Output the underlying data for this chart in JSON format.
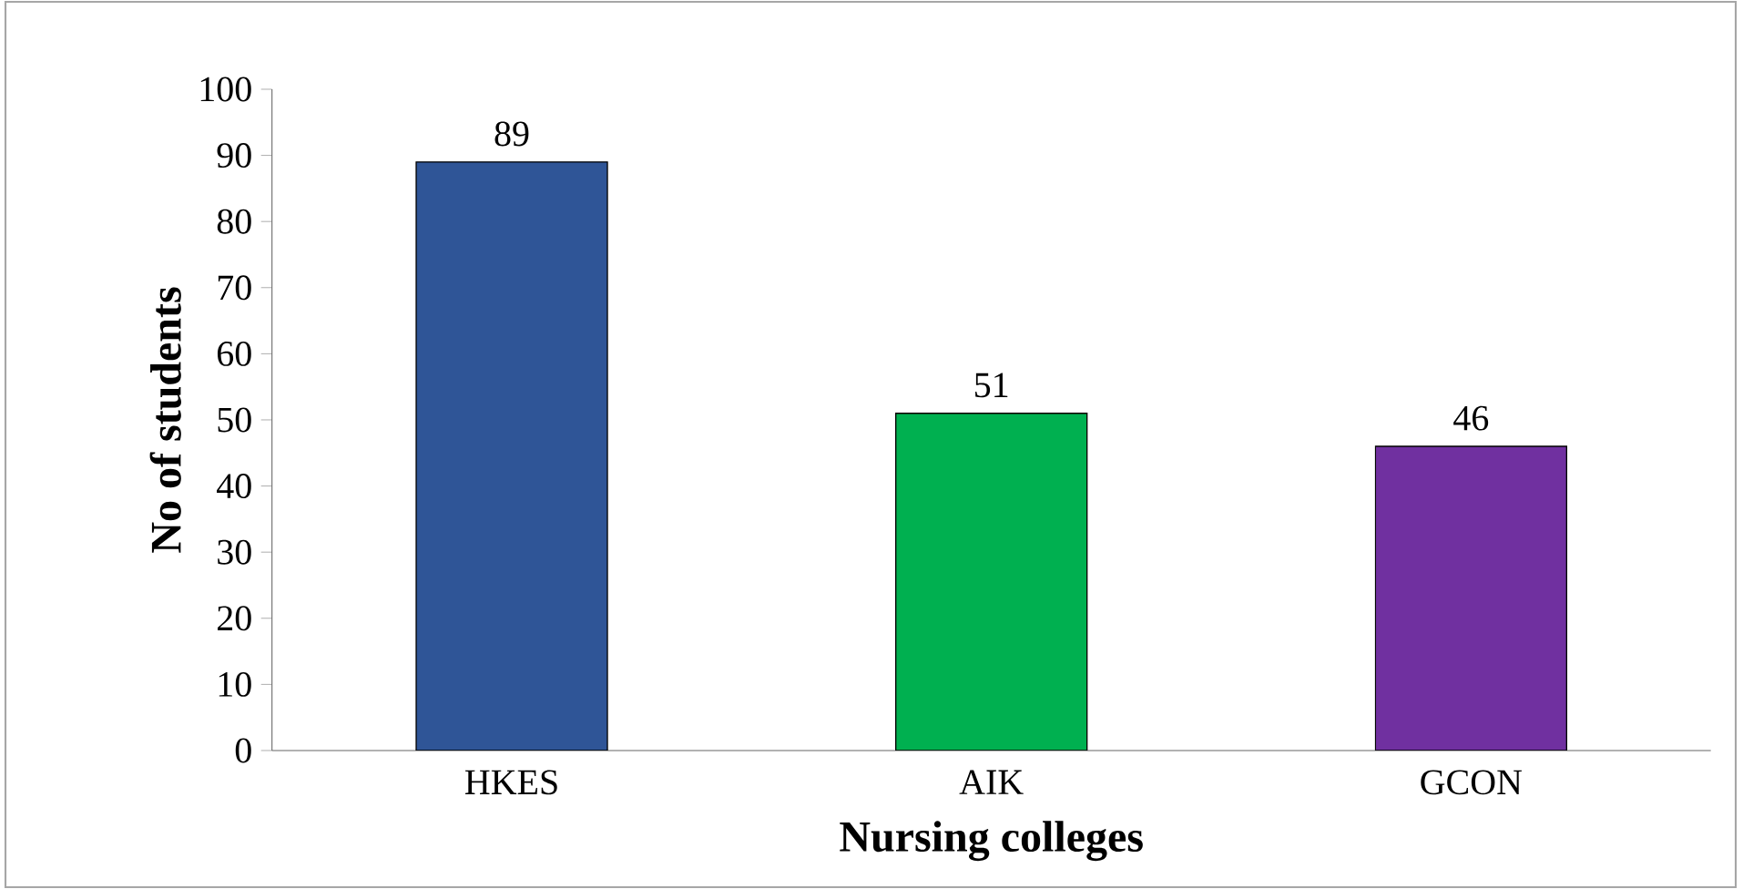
{
  "chart_data": {
    "type": "bar",
    "xlabel": "Nursing colleges",
    "ylabel": "No of students",
    "categories": [
      "HKES",
      "AIK",
      "GCON"
    ],
    "values": [
      89,
      51,
      46
    ],
    "colors": [
      "#2f5597",
      "#00b050",
      "#7030a0"
    ],
    "ylim": [
      0,
      100
    ],
    "yticks": [
      0,
      10,
      20,
      30,
      40,
      50,
      60,
      70,
      80,
      90,
      100
    ],
    "data_labels": true
  }
}
